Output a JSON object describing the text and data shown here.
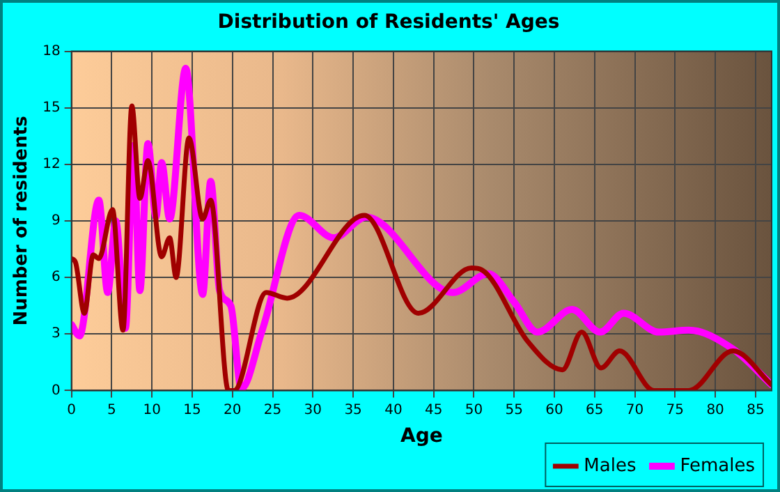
{
  "chart_data": {
    "type": "line",
    "title": "Distribution of Residents' Ages",
    "xlabel": "Age",
    "ylabel": "Number of residents",
    "xlim": [
      0,
      87
    ],
    "xticks": [
      0,
      5,
      10,
      15,
      20,
      25,
      30,
      35,
      40,
      45,
      50,
      55,
      60,
      65,
      70,
      75,
      80,
      85
    ],
    "ylim": [
      0,
      18
    ],
    "yticks": [
      0,
      3,
      6,
      9,
      12,
      15,
      18
    ],
    "grid": true,
    "legend": "bottom right",
    "marker": "none",
    "series": [
      {
        "name": "Males",
        "color": "#a00000",
        "x": [
          0,
          0.5,
          1.6,
          2.7,
          3.4,
          5.1,
          6.4,
          7.5,
          8.5,
          9.5,
          11.2,
          12.2,
          13,
          14.6,
          16.3,
          17.3,
          19.5,
          20.2,
          24.2,
          26.8,
          36.4,
          43.1,
          49.7,
          51,
          56.7,
          61,
          63.4,
          65.8,
          68.1,
          72.4,
          76.7,
          82.2,
          87
        ],
        "values": [
          7,
          6.8,
          4.1,
          7.2,
          7,
          9.6,
          3.2,
          15.1,
          10.2,
          12.2,
          7.1,
          8.1,
          6,
          13.4,
          9.1,
          10.1,
          0,
          0,
          5.2,
          4.9,
          9.3,
          4.1,
          6.5,
          6.4,
          2.6,
          1.1,
          3.1,
          1.2,
          2.1,
          0,
          0,
          2.1,
          0.3
        ]
      },
      {
        "name": "Females",
        "color": "#ff00ff",
        "x": [
          0,
          1,
          3.4,
          4.5,
          5.5,
          6.7,
          7.7,
          8.5,
          9.5,
          10.5,
          11.2,
          12.2,
          14.2,
          16.3,
          17.3,
          18.4,
          19.8,
          21.1,
          23.7,
          28.3,
          32.6,
          36.6,
          47.4,
          51.8,
          55,
          57.9,
          62.2,
          65.7,
          68.6,
          73,
          76.7,
          82.2,
          87
        ],
        "values": [
          3.5,
          2.9,
          10.1,
          5.2,
          9,
          3.3,
          13,
          5.3,
          13.1,
          9.2,
          12.1,
          9.1,
          17.1,
          5.1,
          11.1,
          5.3,
          4.5,
          0.1,
          3.2,
          9.3,
          8.1,
          9.2,
          5.2,
          6.2,
          4.7,
          3.1,
          4.3,
          3.1,
          4.1,
          3.1,
          3.2,
          2.2,
          0.3
        ]
      }
    ]
  }
}
